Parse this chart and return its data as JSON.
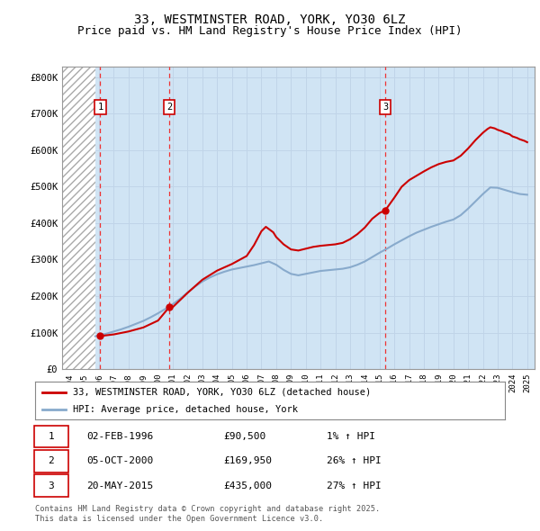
{
  "title": "33, WESTMINSTER ROAD, YORK, YO30 6LZ",
  "subtitle": "Price paid vs. HM Land Registry's House Price Index (HPI)",
  "title_fontsize": 10,
  "subtitle_fontsize": 9,
  "xlim": [
    1993.5,
    2025.5
  ],
  "ylim": [
    0,
    830000
  ],
  "yticks": [
    0,
    100000,
    200000,
    300000,
    400000,
    500000,
    600000,
    700000,
    800000
  ],
  "ytick_labels": [
    "£0",
    "£100K",
    "£200K",
    "£300K",
    "£400K",
    "£500K",
    "£600K",
    "£700K",
    "£800K"
  ],
  "xticks": [
    1994,
    1995,
    1996,
    1997,
    1998,
    1999,
    2000,
    2001,
    2002,
    2003,
    2004,
    2005,
    2006,
    2007,
    2008,
    2009,
    2010,
    2011,
    2012,
    2013,
    2014,
    2015,
    2016,
    2017,
    2018,
    2019,
    2020,
    2021,
    2022,
    2023,
    2024,
    2025
  ],
  "hatch_end": 1995.75,
  "grid_color": "#c0d4e8",
  "background_color": "#d0e4f4",
  "sale_dates_decimal": [
    1996.09,
    2000.76,
    2015.38
  ],
  "sale_prices": [
    90500,
    169950,
    435000
  ],
  "sale_labels": [
    "1",
    "2",
    "3"
  ],
  "sale_date_strings": [
    "02-FEB-1996",
    "05-OCT-2000",
    "20-MAY-2015"
  ],
  "sale_price_strings": [
    "£90,500",
    "£169,950",
    "£435,000"
  ],
  "sale_hpi_pct": [
    "1%",
    "26%",
    "27%"
  ],
  "red_line_color": "#cc0000",
  "blue_line_color": "#88aacc",
  "vline_color": "#ee3333",
  "legend1": "33, WESTMINSTER ROAD, YORK, YO30 6LZ (detached house)",
  "legend2": "HPI: Average price, detached house, York",
  "footer1": "Contains HM Land Registry data © Crown copyright and database right 2025.",
  "footer2": "This data is licensed under the Open Government Licence v3.0.",
  "hpi_x": [
    1995.75,
    1996,
    1996.5,
    1997,
    1997.5,
    1998,
    1998.5,
    1999,
    1999.5,
    2000,
    2000.5,
    2001,
    2001.5,
    2002,
    2002.5,
    2003,
    2003.5,
    2004,
    2004.5,
    2005,
    2005.5,
    2006,
    2006.5,
    2007,
    2007.5,
    2008,
    2008.5,
    2009,
    2009.5,
    2010,
    2010.5,
    2011,
    2011.5,
    2012,
    2012.5,
    2013,
    2013.5,
    2014,
    2014.5,
    2015,
    2015.5,
    2016,
    2016.5,
    2017,
    2017.5,
    2018,
    2018.5,
    2019,
    2019.5,
    2020,
    2020.5,
    2021,
    2021.5,
    2022,
    2022.5,
    2023,
    2023.5,
    2024,
    2024.5,
    2025
  ],
  "hpi_y": [
    90000,
    92000,
    97000,
    103000,
    109000,
    116000,
    124000,
    132000,
    142000,
    153000,
    165000,
    178000,
    193000,
    210000,
    226000,
    240000,
    251000,
    260000,
    267000,
    273000,
    277000,
    281000,
    285000,
    290000,
    295000,
    286000,
    272000,
    261000,
    257000,
    261000,
    265000,
    269000,
    271000,
    273000,
    275000,
    279000,
    286000,
    295000,
    307000,
    319000,
    330000,
    342000,
    353000,
    364000,
    374000,
    382000,
    390000,
    397000,
    404000,
    410000,
    422000,
    440000,
    460000,
    480000,
    498000,
    497000,
    491000,
    485000,
    480000,
    478000
  ],
  "red_x": [
    1996.09,
    1997,
    1998,
    1999,
    2000,
    2000.76,
    2001,
    2002,
    2003,
    2004,
    2005,
    2006,
    2006.5,
    2007,
    2007.3,
    2007.8,
    2008,
    2008.5,
    2009,
    2009.5,
    2010,
    2010.5,
    2011,
    2011.5,
    2012,
    2012.5,
    2013,
    2013.5,
    2014,
    2014.5,
    2015,
    2015.38,
    2016,
    2016.5,
    2017,
    2017.5,
    2018,
    2018.5,
    2019,
    2019.5,
    2020,
    2020.5,
    2021,
    2021.5,
    2022,
    2022.3,
    2022.5,
    2022.8,
    2023,
    2023.3,
    2023.5,
    2023.8,
    2024,
    2024.3,
    2024.5,
    2024.8,
    2025
  ],
  "red_y": [
    90500,
    95000,
    103000,
    114000,
    133000,
    169950,
    169950,
    209000,
    245000,
    270000,
    288000,
    310000,
    340000,
    378000,
    390000,
    375000,
    362000,
    342000,
    328000,
    325000,
    330000,
    335000,
    338000,
    340000,
    342000,
    346000,
    356000,
    370000,
    388000,
    412000,
    428000,
    435000,
    470000,
    500000,
    518000,
    530000,
    542000,
    553000,
    562000,
    568000,
    572000,
    585000,
    605000,
    628000,
    648000,
    658000,
    663000,
    660000,
    656000,
    652000,
    648000,
    644000,
    638000,
    634000,
    630000,
    626000,
    622000
  ]
}
